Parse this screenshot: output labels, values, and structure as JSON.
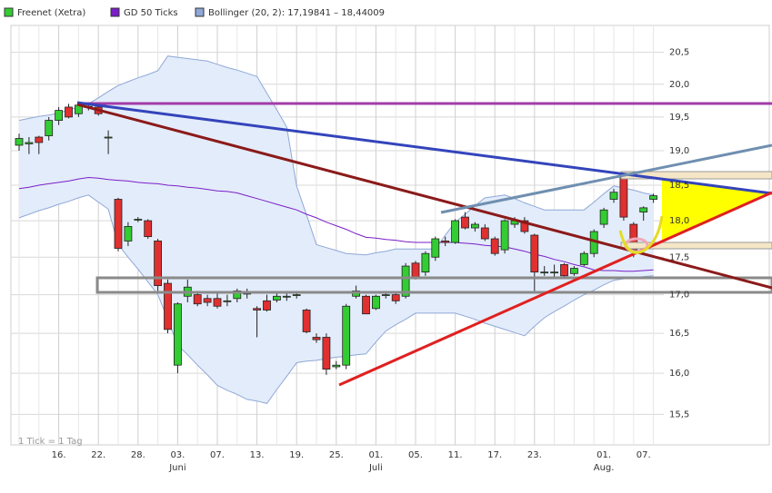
{
  "chart_data": {
    "type": "candlestick",
    "log_scale": true,
    "grid": true,
    "footnote": "1 Tick = 1 Tag",
    "ylim": [
      15.16,
      20.9
    ],
    "yticks": [
      {
        "value": 15.5,
        "label": "15,5"
      },
      {
        "value": 16,
        "label": "16,0"
      },
      {
        "value": 16.5,
        "label": "16,5"
      },
      {
        "value": 17,
        "label": "17,0"
      },
      {
        "value": 17.5,
        "label": "17,5"
      },
      {
        "value": 18,
        "label": "18,0"
      },
      {
        "value": 18.5,
        "label": "18,5"
      },
      {
        "value": 19,
        "label": "19,0"
      },
      {
        "value": 19.5,
        "label": "19,5"
      },
      {
        "value": 20,
        "label": "20,0"
      },
      {
        "value": 20.5,
        "label": "20,5"
      }
    ],
    "categories": [
      null,
      null,
      null,
      null,
      "16.",
      null,
      null,
      null,
      "22.",
      null,
      null,
      null,
      "28.",
      null,
      null,
      null,
      "03.",
      null,
      null,
      null,
      "07.",
      null,
      null,
      null,
      "13.",
      null,
      null,
      null,
      "19.",
      null,
      null,
      null,
      "25.",
      null,
      null,
      null,
      "01.",
      null,
      null,
      null,
      "05.",
      null,
      null,
      null,
      "11.",
      null,
      null,
      null,
      "17.",
      null,
      null,
      null,
      "23.",
      null,
      null,
      null,
      null,
      null,
      null,
      "01.",
      null,
      null,
      null,
      "07.",
      null
    ],
    "months": [
      null,
      null,
      null,
      null,
      null,
      null,
      null,
      null,
      null,
      null,
      null,
      null,
      null,
      null,
      null,
      null,
      "Juni",
      null,
      null,
      null,
      null,
      null,
      null,
      null,
      null,
      null,
      null,
      null,
      null,
      null,
      null,
      null,
      null,
      null,
      null,
      null,
      "Juli",
      null,
      null,
      null,
      null,
      null,
      null,
      null,
      null,
      null,
      null,
      null,
      null,
      null,
      null,
      null,
      null,
      null,
      null,
      null,
      null,
      null,
      null,
      "Aug.",
      null,
      null,
      null,
      null,
      null
    ],
    "series": [
      {
        "name": "Freenet (Xetra)",
        "color": "#33cc33",
        "down_color": "#e03030",
        "open": [
          19.08,
          19.1,
          19.2,
          19.22,
          19.45,
          19.65,
          19.55,
          19.66,
          19.65,
          19.2,
          18.3,
          17.72,
          18.02,
          18.0,
          17.72,
          17.15,
          16.1,
          16.98,
          17.0,
          16.95,
          16.95,
          16.92,
          16.95,
          17.02,
          16.82,
          16.92,
          16.93,
          16.98,
          17.0,
          16.8,
          16.45,
          16.45,
          16.08,
          16.1,
          16.98,
          16.98,
          16.82,
          17.0,
          17.0,
          16.98,
          17.42,
          17.3,
          17.5,
          17.72,
          17.7,
          18.05,
          17.9,
          17.9,
          17.75,
          17.6,
          17.95,
          18.0,
          17.8,
          17.3,
          17.3,
          17.4,
          17.28,
          17.4,
          17.55,
          17.95,
          18.3,
          18.65,
          17.95,
          18.12,
          18.3
        ],
        "high": [
          19.25,
          19.2,
          19.22,
          19.5,
          19.65,
          19.7,
          19.7,
          19.72,
          19.7,
          19.3,
          18.32,
          17.98,
          18.05,
          18.02,
          17.75,
          17.2,
          16.9,
          17.2,
          17.05,
          17.0,
          17.02,
          17.0,
          17.08,
          17.08,
          16.85,
          17.0,
          17.02,
          17.05,
          17.05,
          16.82,
          16.5,
          16.5,
          16.15,
          16.88,
          17.12,
          17.0,
          17.0,
          17.05,
          17.02,
          17.42,
          17.45,
          17.58,
          17.78,
          17.78,
          18.02,
          18.12,
          17.98,
          17.95,
          17.78,
          18.02,
          18.05,
          18.05,
          17.82,
          17.38,
          17.4,
          17.42,
          17.38,
          17.58,
          17.88,
          18.18,
          18.45,
          18.7,
          17.98,
          18.2,
          18.38
        ],
        "low": [
          19.0,
          18.95,
          18.95,
          19.15,
          19.38,
          19.48,
          19.5,
          19.6,
          19.52,
          18.95,
          17.58,
          17.65,
          17.98,
          17.75,
          17.05,
          16.5,
          16.0,
          16.9,
          16.85,
          16.85,
          16.82,
          16.85,
          16.9,
          16.95,
          16.45,
          16.78,
          16.9,
          16.92,
          16.95,
          16.5,
          16.38,
          15.98,
          16.05,
          16.05,
          16.95,
          16.75,
          16.8,
          16.95,
          16.88,
          16.95,
          17.2,
          17.25,
          17.45,
          17.65,
          17.68,
          17.88,
          17.85,
          17.72,
          17.52,
          17.55,
          17.9,
          17.82,
          17.05,
          17.25,
          17.22,
          17.22,
          17.25,
          17.38,
          17.5,
          17.9,
          18.25,
          18.0,
          17.5,
          18.0,
          18.25
        ],
        "close": [
          19.18,
          19.12,
          19.12,
          19.45,
          19.6,
          19.5,
          19.68,
          19.65,
          19.55,
          19.2,
          17.62,
          17.92,
          18.02,
          17.78,
          17.12,
          16.55,
          16.88,
          17.1,
          16.88,
          16.9,
          16.85,
          16.92,
          17.05,
          17.02,
          16.8,
          16.8,
          16.98,
          16.98,
          17.0,
          16.52,
          16.42,
          16.05,
          16.1,
          16.85,
          17.05,
          16.75,
          16.98,
          17.0,
          16.92,
          17.38,
          17.22,
          17.55,
          17.75,
          17.7,
          18.0,
          17.9,
          17.95,
          17.75,
          17.55,
          18.0,
          18.0,
          17.85,
          17.3,
          17.3,
          17.3,
          17.25,
          17.35,
          17.55,
          17.85,
          18.15,
          18.4,
          18.05,
          17.6,
          18.18,
          18.35
        ]
      },
      {
        "name": "GD 50 Ticks",
        "color": "#7a1ec8",
        "values": [
          18.45,
          18.47,
          18.5,
          18.52,
          18.54,
          18.56,
          18.59,
          18.61,
          18.6,
          18.58,
          18.57,
          18.56,
          18.54,
          18.53,
          18.52,
          18.5,
          18.49,
          18.47,
          18.46,
          18.44,
          18.42,
          18.41,
          18.39,
          18.35,
          18.31,
          18.27,
          18.23,
          18.19,
          18.15,
          18.09,
          18.04,
          17.98,
          17.93,
          17.88,
          17.82,
          17.77,
          17.76,
          17.74,
          17.73,
          17.71,
          17.7,
          17.7,
          17.7,
          17.7,
          17.7,
          17.69,
          17.68,
          17.66,
          17.65,
          17.64,
          17.61,
          17.58,
          17.54,
          17.51,
          17.47,
          17.44,
          17.4,
          17.37,
          17.33,
          17.32,
          17.32,
          17.31,
          17.31,
          17.32,
          17.33
        ]
      },
      {
        "name": "Bollinger (20, 2): 17,19841 – 18,44009",
        "color": "#8fa8d8",
        "fill": "#e3ecfa",
        "upper": [
          19.45,
          19.48,
          19.51,
          19.53,
          19.56,
          19.61,
          19.65,
          19.7,
          19.79,
          19.89,
          19.98,
          20.04,
          20.1,
          20.15,
          20.21,
          20.44,
          20.42,
          20.4,
          20.38,
          20.36,
          20.31,
          20.26,
          20.22,
          20.17,
          20.12,
          19.86,
          19.61,
          19.35,
          18.49,
          18.08,
          17.67,
          17.63,
          17.59,
          17.55,
          17.54,
          17.53,
          17.56,
          17.58,
          17.61,
          17.61,
          17.61,
          17.61,
          17.61,
          17.8,
          17.98,
          18.09,
          18.21,
          18.32,
          18.34,
          18.36,
          18.31,
          18.25,
          18.2,
          18.15,
          18.15,
          18.15,
          18.15,
          18.15,
          18.26,
          18.38,
          18.49,
          18.46,
          18.43,
          18.39,
          18.36
        ],
        "lower": [
          18.04,
          18.09,
          18.14,
          18.18,
          18.23,
          18.27,
          18.32,
          18.36,
          18.26,
          18.16,
          17.67,
          17.5,
          17.34,
          17.17,
          17.0,
          16.68,
          16.35,
          16.23,
          16.1,
          15.98,
          15.85,
          15.79,
          15.74,
          15.68,
          15.66,
          15.63,
          15.8,
          15.96,
          16.13,
          16.15,
          16.16,
          16.18,
          16.2,
          16.21,
          16.23,
          16.24,
          16.39,
          16.53,
          16.61,
          16.68,
          16.76,
          16.76,
          16.76,
          16.76,
          16.76,
          16.72,
          16.68,
          16.63,
          16.59,
          16.55,
          16.51,
          16.47,
          16.59,
          16.7,
          16.78,
          16.85,
          16.93,
          17.0,
          17.06,
          17.13,
          17.19,
          17.21,
          17.22,
          17.24,
          17.25
        ]
      }
    ]
  }
}
